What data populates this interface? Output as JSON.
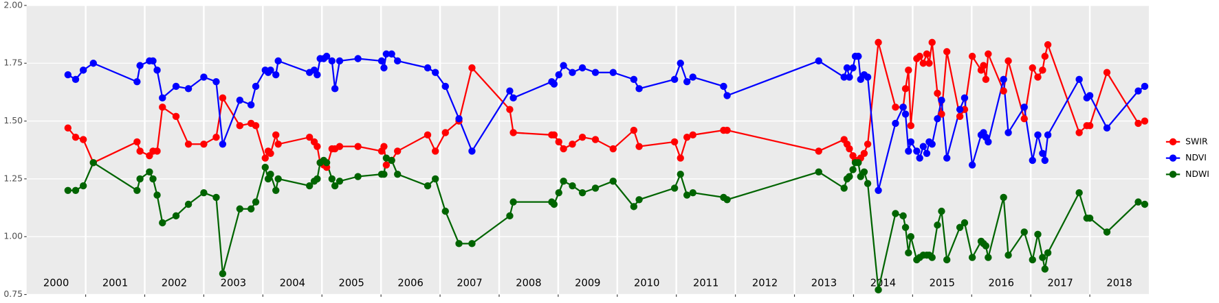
{
  "chart_data": {
    "type": "line",
    "x": [
      2000.7,
      2000.83,
      2000.96,
      2001.13,
      2001.87,
      2001.92,
      2002.08,
      2002.14,
      2002.21,
      2002.3,
      2002.53,
      2002.74,
      2003.0,
      2003.21,
      2003.32,
      2003.61,
      2003.8,
      2003.88,
      2004.04,
      2004.09,
      2004.13,
      2004.22,
      2004.26,
      2004.79,
      2004.87,
      2004.92,
      2004.97,
      2005.03,
      2005.08,
      2005.17,
      2005.22,
      2005.3,
      2005.61,
      2006.01,
      2006.05,
      2006.09,
      2006.18,
      2006.28,
      2006.79,
      2006.92,
      2007.09,
      2007.32,
      2007.54,
      2008.18,
      2008.24,
      2008.89,
      2008.93,
      2009.01,
      2009.09,
      2009.24,
      2009.41,
      2009.63,
      2009.93,
      2010.28,
      2010.37,
      2010.97,
      2011.07,
      2011.18,
      2011.28,
      2011.8,
      2011.86,
      2013.41,
      2013.84,
      2013.89,
      2013.93,
      2013.99,
      2014.03,
      2014.08,
      2014.12,
      2014.18,
      2014.24,
      2014.42,
      2014.71,
      2014.84,
      2014.88,
      2014.93,
      2014.97,
      2015.07,
      2015.12,
      2015.18,
      2015.24,
      2015.28,
      2015.33,
      2015.42,
      2015.49,
      2015.58,
      2015.8,
      2015.88,
      2016.01,
      2016.16,
      2016.2,
      2016.24,
      2016.28,
      2016.54,
      2016.62,
      2016.89,
      2017.03,
      2017.12,
      2017.2,
      2017.24,
      2017.29,
      2017.82,
      2017.95,
      2018.0,
      2018.29,
      2018.82,
      2018.93
    ],
    "series": [
      {
        "name": "SWIR",
        "color": "#ff0000",
        "values": [
          1.47,
          1.43,
          1.42,
          1.32,
          1.41,
          1.37,
          1.35,
          1.37,
          1.37,
          1.56,
          1.52,
          1.4,
          1.4,
          1.43,
          1.6,
          1.48,
          1.49,
          1.48,
          1.34,
          1.37,
          1.36,
          1.44,
          1.4,
          1.43,
          1.41,
          1.39,
          1.32,
          1.31,
          1.3,
          1.38,
          1.38,
          1.39,
          1.39,
          1.37,
          1.39,
          1.31,
          1.33,
          1.37,
          1.44,
          1.37,
          1.45,
          1.5,
          1.73,
          1.55,
          1.45,
          1.44,
          1.44,
          1.41,
          1.38,
          1.4,
          1.43,
          1.42,
          1.38,
          1.46,
          1.39,
          1.41,
          1.34,
          1.43,
          1.44,
          1.46,
          1.46,
          1.37,
          1.42,
          1.4,
          1.38,
          1.35,
          1.33,
          1.33,
          1.34,
          1.36,
          1.4,
          1.84,
          1.56,
          1.56,
          1.64,
          1.72,
          1.48,
          1.77,
          1.78,
          1.75,
          1.79,
          1.75,
          1.84,
          1.62,
          1.53,
          1.8,
          1.52,
          1.55,
          1.78,
          1.72,
          1.74,
          1.68,
          1.79,
          1.63,
          1.76,
          1.51,
          1.73,
          1.69,
          1.72,
          1.78,
          1.83,
          1.45,
          1.48,
          1.48,
          1.71,
          1.49,
          1.5
        ]
      },
      {
        "name": "NDVI",
        "color": "#0000ff",
        "values": [
          1.7,
          1.68,
          1.72,
          1.75,
          1.67,
          1.74,
          1.76,
          1.76,
          1.72,
          1.6,
          1.65,
          1.64,
          1.69,
          1.67,
          1.4,
          1.59,
          1.57,
          1.65,
          1.72,
          1.71,
          1.72,
          1.7,
          1.76,
          1.71,
          1.72,
          1.7,
          1.77,
          1.77,
          1.78,
          1.76,
          1.64,
          1.76,
          1.77,
          1.76,
          1.73,
          1.79,
          1.79,
          1.76,
          1.73,
          1.71,
          1.65,
          1.51,
          1.37,
          1.63,
          1.6,
          1.67,
          1.66,
          1.7,
          1.74,
          1.71,
          1.73,
          1.71,
          1.71,
          1.68,
          1.64,
          1.68,
          1.75,
          1.67,
          1.69,
          1.65,
          1.61,
          1.76,
          1.69,
          1.73,
          1.69,
          1.73,
          1.78,
          1.78,
          1.68,
          1.7,
          1.69,
          1.2,
          1.49,
          1.56,
          1.53,
          1.37,
          1.41,
          1.37,
          1.34,
          1.39,
          1.36,
          1.41,
          1.4,
          1.51,
          1.59,
          1.34,
          1.55,
          1.6,
          1.31,
          1.44,
          1.45,
          1.43,
          1.41,
          1.68,
          1.45,
          1.56,
          1.33,
          1.44,
          1.36,
          1.33,
          1.44,
          1.68,
          1.6,
          1.61,
          1.47,
          1.63,
          1.65
        ]
      },
      {
        "name": "NDWI",
        "color": "#006400",
        "values": [
          1.2,
          1.2,
          1.22,
          1.32,
          1.2,
          1.25,
          1.28,
          1.25,
          1.18,
          1.06,
          1.09,
          1.14,
          1.19,
          1.17,
          0.84,
          1.12,
          1.12,
          1.15,
          1.3,
          1.25,
          1.27,
          1.2,
          1.25,
          1.22,
          1.24,
          1.25,
          1.32,
          1.33,
          1.32,
          1.25,
          1.22,
          1.24,
          1.26,
          1.27,
          1.27,
          1.34,
          1.33,
          1.27,
          1.22,
          1.25,
          1.11,
          0.97,
          0.97,
          1.09,
          1.15,
          1.15,
          1.14,
          1.19,
          1.24,
          1.22,
          1.19,
          1.21,
          1.24,
          1.13,
          1.16,
          1.21,
          1.27,
          1.18,
          1.19,
          1.17,
          1.16,
          1.28,
          1.21,
          1.25,
          1.26,
          1.29,
          1.32,
          1.32,
          1.26,
          1.28,
          1.23,
          0.77,
          1.1,
          1.09,
          1.04,
          0.93,
          1.0,
          0.9,
          0.91,
          0.92,
          0.92,
          0.92,
          0.91,
          1.05,
          1.11,
          0.9,
          1.04,
          1.06,
          0.91,
          0.98,
          0.97,
          0.96,
          0.91,
          1.17,
          0.92,
          1.02,
          0.9,
          1.01,
          0.91,
          0.86,
          0.93,
          1.19,
          1.08,
          1.08,
          1.02,
          1.15,
          1.14
        ]
      }
    ],
    "xlim": [
      2000,
      2019
    ],
    "xticks": [
      2001,
      2002,
      2003,
      2004,
      2005,
      2006,
      2007,
      2008,
      2009,
      2010,
      2011,
      2012,
      2013,
      2014,
      2015,
      2016,
      2017,
      2018
    ],
    "year_labels": [
      2000,
      2001,
      2002,
      2003,
      2004,
      2005,
      2006,
      2007,
      2008,
      2009,
      2010,
      2011,
      2012,
      2013,
      2014,
      2015,
      2016,
      2017,
      2018
    ],
    "ylim": [
      0.75,
      2.0
    ],
    "yticks": [
      {
        "value": 0.75,
        "label": "0.75"
      },
      {
        "value": 1.0,
        "label": "1.00"
      },
      {
        "value": 1.25,
        "label": "1.25"
      },
      {
        "value": 1.5,
        "label": "1.50"
      },
      {
        "value": 1.75,
        "label": "1.75"
      },
      {
        "value": 2.0,
        "label": "2.00"
      }
    ],
    "grid": true,
    "legend": "right"
  }
}
